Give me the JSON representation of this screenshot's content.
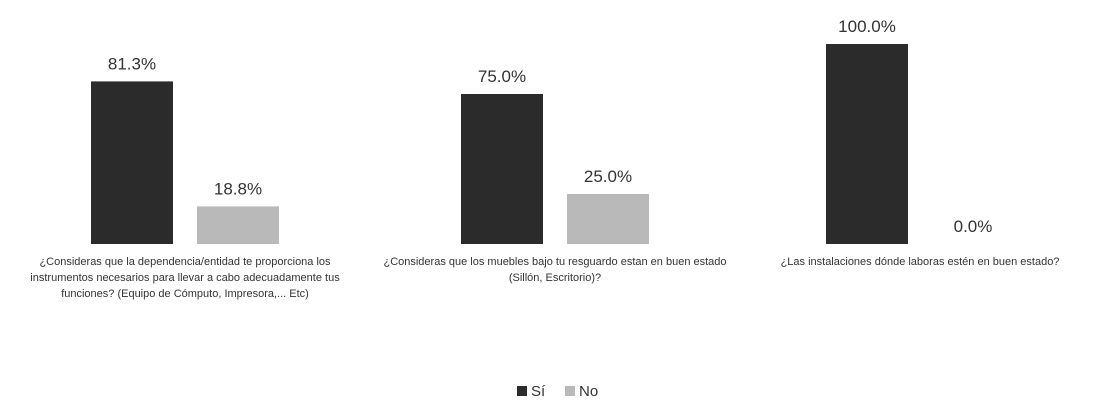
{
  "chart_data": {
    "type": "bar",
    "categories": [
      "¿Consideras que la dependencia/entidad te proporciona los instrumentos necesarios para llevar a cabo adecuadamente tus funciones? (Equipo de Cómputo, Impresora,... Etc)",
      "¿Consideras que los muebles bajo tu resguardo estan en buen estado (Sillón, Escritorio)?",
      "¿Las instalaciones dónde laboras estén en buen estado?"
    ],
    "series": [
      {
        "name": "Sí",
        "values": [
          81.3,
          75.0,
          100.0
        ],
        "labels": [
          "81.3%",
          "75.0%",
          "100.0%"
        ],
        "color": "#2b2b2b"
      },
      {
        "name": "No",
        "values": [
          18.8,
          25.0,
          0.0
        ],
        "labels": [
          "18.8%",
          "25.0%",
          "0.0%"
        ],
        "color": "#b9b9b9"
      }
    ],
    "ylim": [
      0,
      100
    ],
    "grid": false,
    "legend_position": "bottom-center"
  }
}
